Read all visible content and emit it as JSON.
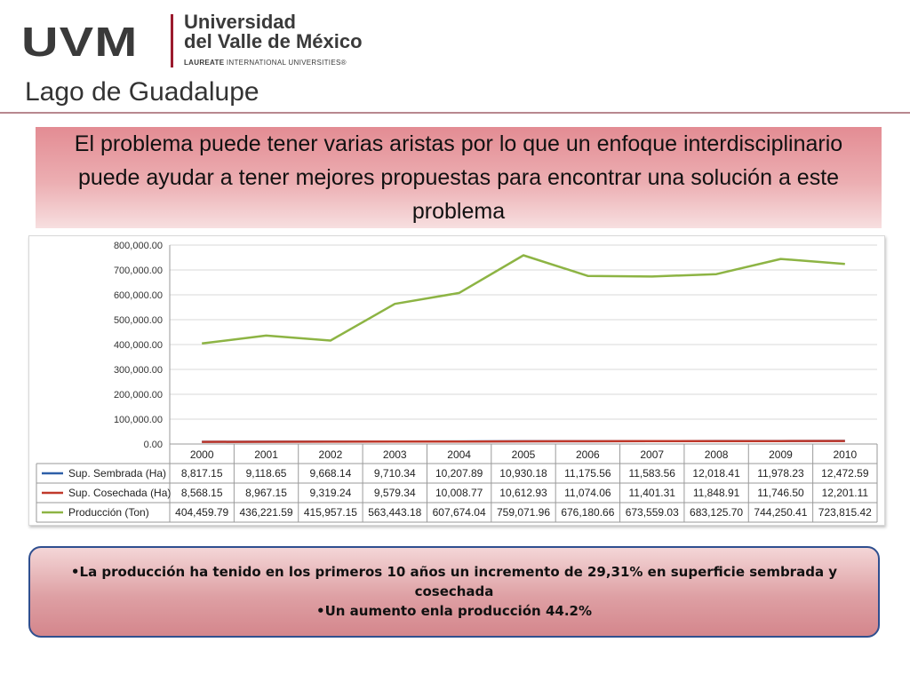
{
  "header": {
    "logo_mark": "UVM",
    "logo_name_line1": "Universidad",
    "logo_name_line2": "del Valle de México",
    "logo_tag_bold": "LAUREATE",
    "logo_tag_rest": " INTERNATIONAL UNIVERSITIES®",
    "slide_title": "Lago de Guadalupe",
    "accent_color": "#9b1b2e"
  },
  "banner": {
    "text": "El problema  puede tener varias  aristas  por lo que  un enfoque interdisciplinario puede ayudar a tener mejores propuestas  para encontrar   una solución  a este problema",
    "color": "#e38c93"
  },
  "chart_data": {
    "type": "line",
    "title": "",
    "xlabel": "",
    "ylabel": "",
    "ylim": [
      0,
      800000
    ],
    "yticks": [
      "0.00",
      "100,000.00",
      "200,000.00",
      "300,000.00",
      "400,000.00",
      "500,000.00",
      "600,000.00",
      "700,000.00",
      "800,000.00"
    ],
    "grid": true,
    "legend": "data-table",
    "categories": [
      "2000",
      "2001",
      "2002",
      "2003",
      "2004",
      "2005",
      "2006",
      "2007",
      "2008",
      "2009",
      "2010"
    ],
    "series": [
      {
        "name": "Sup. Sembrada (Ha)",
        "color": "#2e5fa8",
        "values": [
          8817.15,
          9118.65,
          9668.14,
          9710.34,
          10207.89,
          10930.18,
          11175.56,
          11583.56,
          12018.41,
          11978.23,
          12472.59
        ],
        "labels": [
          "8,817.15",
          "9,118.65",
          "9,668.14",
          "9,710.34",
          "10,207.89",
          "10,930.18",
          "11,175.56",
          "11,583.56",
          "12,018.41",
          "11,978.23",
          "12,472.59"
        ]
      },
      {
        "name": "Sup. Cosechada (Ha)",
        "color": "#c0392b",
        "values": [
          8568.15,
          8967.15,
          9319.24,
          9579.34,
          10008.77,
          10612.93,
          11074.06,
          11401.31,
          11848.91,
          11746.5,
          12201.11
        ],
        "labels": [
          "8,568.15",
          "8,967.15",
          "9,319.24",
          "9,579.34",
          "10,008.77",
          "10,612.93",
          "11,074.06",
          "11,401.31",
          "11,848.91",
          "11,746.50",
          "12,201.11"
        ]
      },
      {
        "name": "Producción (Ton)",
        "color": "#8db444",
        "values": [
          404459.79,
          436221.59,
          415957.15,
          563443.18,
          607674.04,
          759071.96,
          676180.66,
          673559.03,
          683125.7,
          744250.41,
          723815.42
        ],
        "labels": [
          "404,459.79",
          "436,221.59",
          "415,957.15",
          "563,443.18",
          "607,674.04",
          "759,071.96",
          "676,180.66",
          "673,559.03",
          "683,125.70",
          "744,250.41",
          "723,815.42"
        ]
      }
    ]
  },
  "notes": {
    "line1": "•La producción  ha tenido  en los  primeros 10 años   un incremento  de 29,31%  en superficie   sembrada y cosechada",
    "line2": "•Un aumento enla producción  44.2%",
    "border_color": "#2f4f8f"
  }
}
